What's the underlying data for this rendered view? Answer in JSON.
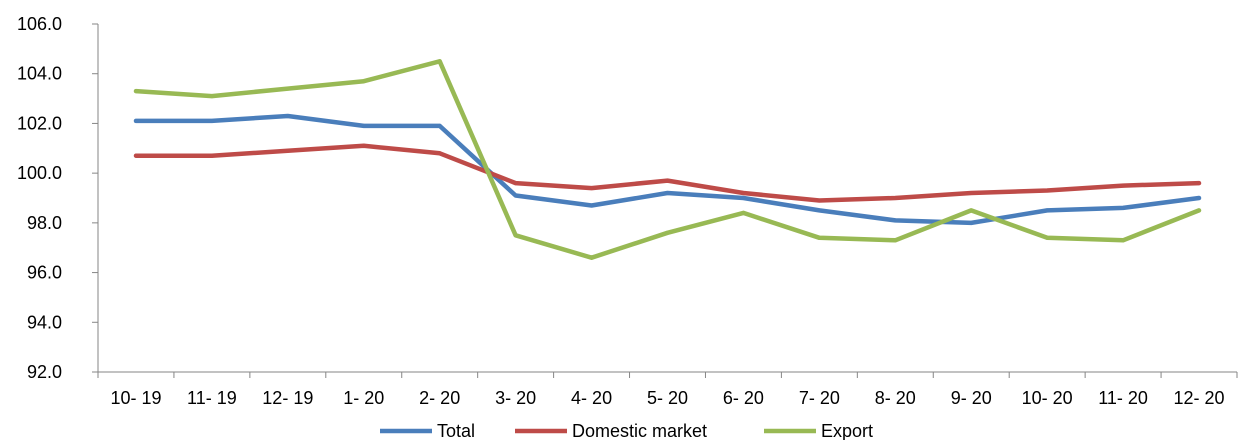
{
  "chart_data": {
    "type": "line",
    "categories": [
      "10- 19",
      "11- 19",
      "12- 19",
      "1- 20",
      "2- 20",
      "3- 20",
      "4- 20",
      "5- 20",
      "6- 20",
      "7- 20",
      "8- 20",
      "9- 20",
      "10- 20",
      "11- 20",
      "12- 20"
    ],
    "ylim": [
      92.0,
      106.0
    ],
    "yticks": [
      "92.0",
      "94.0",
      "96.0",
      "98.0",
      "100.0",
      "102.0",
      "104.0",
      "106.0"
    ],
    "grid": false,
    "legend_position": "bottom",
    "series": [
      {
        "name": "Total",
        "color": "#4a7ebb",
        "values": [
          102.1,
          102.1,
          102.3,
          101.9,
          101.9,
          99.1,
          98.7,
          99.2,
          99.0,
          98.5,
          98.1,
          98.0,
          98.5,
          98.6,
          99.0
        ]
      },
      {
        "name": "Domestic market",
        "color": "#be4b48",
        "values": [
          100.7,
          100.7,
          100.9,
          101.1,
          100.8,
          99.6,
          99.4,
          99.7,
          99.2,
          98.9,
          99.0,
          99.2,
          99.3,
          99.5,
          99.6
        ]
      },
      {
        "name": "Export",
        "color": "#98b954",
        "values": [
          103.3,
          103.1,
          103.4,
          103.7,
          104.5,
          97.5,
          96.6,
          97.6,
          98.4,
          97.4,
          97.3,
          98.5,
          97.4,
          97.3,
          98.5
        ]
      }
    ]
  }
}
